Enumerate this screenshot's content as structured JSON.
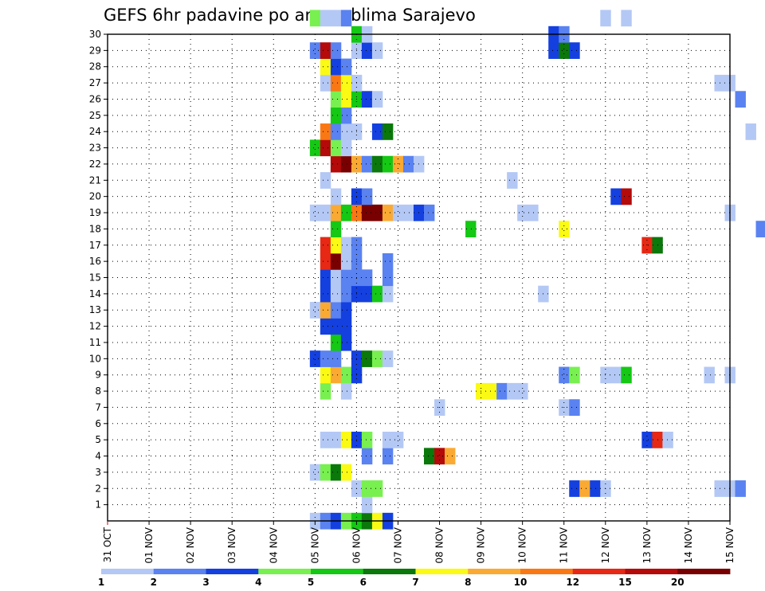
{
  "chart_data": {
    "type": "heatmap",
    "title": "GEFS 6hr padavine po ansamblima Sarajevo",
    "x_ticks": [
      "31 OCT",
      "01 NOV",
      "02 NOV",
      "03 NOV",
      "04 NOV",
      "05 NOV",
      "06 NOV",
      "07 NOV",
      "08 NOV",
      "09 NOV",
      "10 NOV",
      "11 NOV",
      "12 NOV",
      "13 NOV",
      "14 NOV",
      "15 NOV"
    ],
    "y_ticks": [
      "1",
      "2",
      "3",
      "4",
      "5",
      "6",
      "7",
      "8",
      "9",
      "10",
      "11",
      "12",
      "13",
      "14",
      "15",
      "16",
      "17",
      "18",
      "19",
      "20",
      "21",
      "22",
      "23",
      "24",
      "25",
      "26",
      "27",
      "28",
      "29",
      "30"
    ],
    "x_range_days": [
      0,
      15
    ],
    "y_range": [
      0,
      30
    ],
    "step_hours": 6,
    "grid": true,
    "colorbar": {
      "labels": [
        "1",
        "2",
        "3",
        "4",
        "5",
        "6",
        "7",
        "8",
        "10",
        "12",
        "15",
        "20"
      ],
      "colors": [
        "#b4c8f5",
        "#5a82f0",
        "#1440e0",
        "#78f050",
        "#14c814",
        "#0a780a",
        "#fafa14",
        "#faaa32",
        "#fa7814",
        "#e62814",
        "#b40a0a",
        "#780000"
      ]
    },
    "cells": [
      [
        0,
        5.0,
        1
      ],
      [
        0,
        5.25,
        2
      ],
      [
        0,
        5.5,
        3
      ],
      [
        0,
        5.75,
        4
      ],
      [
        0,
        6.0,
        5
      ],
      [
        0,
        6.25,
        6
      ],
      [
        0,
        6.5,
        7
      ],
      [
        0,
        6.75,
        3
      ],
      [
        1,
        6.25,
        1
      ],
      [
        2,
        6.0,
        1
      ],
      [
        2,
        6.25,
        4
      ],
      [
        2,
        6.5,
        4
      ],
      [
        2,
        11.25,
        3
      ],
      [
        2,
        11.5,
        8
      ],
      [
        2,
        11.75,
        3
      ],
      [
        2,
        12.0,
        1
      ],
      [
        2,
        14.75,
        1
      ],
      [
        2,
        15.0,
        1
      ],
      [
        2,
        15.25,
        2
      ],
      [
        3,
        5.0,
        1
      ],
      [
        3,
        5.25,
        4
      ],
      [
        3,
        5.5,
        6
      ],
      [
        3,
        5.75,
        7
      ],
      [
        4,
        6.25,
        2
      ],
      [
        4,
        6.75,
        2
      ],
      [
        4,
        7.75,
        6
      ],
      [
        4,
        8.0,
        11
      ],
      [
        4,
        8.25,
        8
      ],
      [
        5,
        5.25,
        1
      ],
      [
        5,
        5.5,
        1
      ],
      [
        5,
        5.75,
        7
      ],
      [
        5,
        6.0,
        3
      ],
      [
        5,
        6.25,
        4
      ],
      [
        5,
        6.75,
        1
      ],
      [
        5,
        7.0,
        1
      ],
      [
        5,
        13.0,
        3
      ],
      [
        5,
        13.25,
        10
      ],
      [
        5,
        13.5,
        1
      ],
      [
        7,
        8.0,
        1
      ],
      [
        7,
        11.0,
        1
      ],
      [
        7,
        11.25,
        2
      ],
      [
        8,
        5.25,
        4
      ],
      [
        8,
        5.75,
        1
      ],
      [
        8,
        9.0,
        7
      ],
      [
        8,
        9.25,
        7
      ],
      [
        8,
        9.5,
        2
      ],
      [
        8,
        9.75,
        1
      ],
      [
        8,
        10.0,
        1
      ],
      [
        9,
        5.25,
        7
      ],
      [
        9,
        5.5,
        8
      ],
      [
        9,
        5.75,
        4
      ],
      [
        9,
        6.0,
        3
      ],
      [
        9,
        11.0,
        2
      ],
      [
        9,
        11.25,
        4
      ],
      [
        9,
        12.0,
        1
      ],
      [
        9,
        12.25,
        1
      ],
      [
        9,
        12.5,
        5
      ],
      [
        9,
        14.5,
        1
      ],
      [
        9,
        15.0,
        1
      ],
      [
        10,
        5.0,
        3
      ],
      [
        10,
        5.25,
        2
      ],
      [
        10,
        5.5,
        2
      ],
      [
        10,
        6.0,
        3
      ],
      [
        10,
        6.25,
        6
      ],
      [
        10,
        6.5,
        4
      ],
      [
        10,
        6.75,
        1
      ],
      [
        11,
        5.5,
        5
      ],
      [
        11,
        5.75,
        3
      ],
      [
        12,
        5.25,
        3
      ],
      [
        12,
        5.5,
        3
      ],
      [
        12,
        5.75,
        3
      ],
      [
        13,
        5.0,
        1
      ],
      [
        13,
        5.25,
        8
      ],
      [
        13,
        5.5,
        2
      ],
      [
        13,
        5.75,
        3
      ],
      [
        14,
        5.25,
        3
      ],
      [
        14,
        5.5,
        1
      ],
      [
        14,
        5.75,
        2
      ],
      [
        14,
        6.0,
        3
      ],
      [
        14,
        6.25,
        3
      ],
      [
        14,
        6.5,
        5
      ],
      [
        14,
        6.75,
        1
      ],
      [
        14,
        10.5,
        1
      ],
      [
        15,
        5.25,
        3
      ],
      [
        15,
        5.5,
        1
      ],
      [
        15,
        5.75,
        2
      ],
      [
        15,
        6.0,
        2
      ],
      [
        15,
        6.25,
        2
      ],
      [
        15,
        6.75,
        2
      ],
      [
        16,
        5.25,
        10
      ],
      [
        16,
        5.5,
        12
      ],
      [
        16,
        5.75,
        1
      ],
      [
        16,
        6.0,
        2
      ],
      [
        16,
        6.75,
        2
      ],
      [
        17,
        5.25,
        10
      ],
      [
        17,
        5.5,
        7
      ],
      [
        17,
        5.75,
        1
      ],
      [
        17,
        6.0,
        2
      ],
      [
        17,
        13.0,
        10
      ],
      [
        17,
        13.25,
        6
      ],
      [
        18,
        5.5,
        5
      ],
      [
        18,
        8.75,
        5
      ],
      [
        18,
        11.0,
        7
      ],
      [
        18,
        15.75,
        2
      ],
      [
        19,
        5.0,
        1
      ],
      [
        19,
        5.25,
        1
      ],
      [
        19,
        5.5,
        8
      ],
      [
        19,
        5.75,
        5
      ],
      [
        19,
        6.0,
        9
      ],
      [
        19,
        6.25,
        12
      ],
      [
        19,
        6.5,
        12
      ],
      [
        19,
        6.75,
        8
      ],
      [
        19,
        7.0,
        1
      ],
      [
        19,
        7.25,
        1
      ],
      [
        19,
        7.5,
        3
      ],
      [
        19,
        7.75,
        2
      ],
      [
        19,
        10.0,
        1
      ],
      [
        19,
        10.25,
        1
      ],
      [
        19,
        15.0,
        1
      ],
      [
        20,
        5.5,
        1
      ],
      [
        20,
        6.0,
        3
      ],
      [
        20,
        6.25,
        2
      ],
      [
        20,
        12.25,
        3
      ],
      [
        20,
        12.5,
        11
      ],
      [
        21,
        5.25,
        1
      ],
      [
        21,
        9.75,
        1
      ],
      [
        22,
        5.5,
        11
      ],
      [
        22,
        5.75,
        12
      ],
      [
        22,
        6.0,
        8
      ],
      [
        22,
        6.25,
        2
      ],
      [
        22,
        6.5,
        6
      ],
      [
        22,
        6.75,
        5
      ],
      [
        22,
        7.0,
        8
      ],
      [
        22,
        7.25,
        2
      ],
      [
        22,
        7.5,
        1
      ],
      [
        23,
        5.0,
        5
      ],
      [
        23,
        5.25,
        11
      ],
      [
        23,
        5.5,
        4
      ],
      [
        23,
        5.75,
        1
      ],
      [
        24,
        5.25,
        9
      ],
      [
        24,
        5.5,
        2
      ],
      [
        24,
        5.75,
        1
      ],
      [
        24,
        6.0,
        1
      ],
      [
        24,
        6.5,
        3
      ],
      [
        24,
        6.75,
        6
      ],
      [
        24,
        15.5,
        1
      ],
      [
        25,
        5.5,
        5
      ],
      [
        25,
        5.75,
        2
      ],
      [
        26,
        5.5,
        4
      ],
      [
        26,
        5.75,
        7
      ],
      [
        26,
        6.0,
        5
      ],
      [
        26,
        6.25,
        3
      ],
      [
        26,
        6.5,
        1
      ],
      [
        26,
        15.25,
        2
      ],
      [
        27,
        5.25,
        1
      ],
      [
        27,
        5.5,
        9
      ],
      [
        27,
        5.75,
        7
      ],
      [
        27,
        6.0,
        1
      ],
      [
        27,
        14.75,
        1
      ],
      [
        27,
        15.0,
        1
      ],
      [
        28,
        5.25,
        7
      ],
      [
        28,
        5.5,
        3
      ],
      [
        28,
        5.75,
        2
      ],
      [
        29,
        5.0,
        2
      ],
      [
        29,
        5.25,
        11
      ],
      [
        29,
        5.5,
        2
      ],
      [
        29,
        6.0,
        1
      ],
      [
        29,
        6.25,
        3
      ],
      [
        29,
        6.5,
        1
      ],
      [
        29,
        10.75,
        3
      ],
      [
        29,
        11.0,
        6
      ],
      [
        29,
        11.25,
        3
      ],
      [
        30,
        6.0,
        5
      ],
      [
        30,
        6.25,
        1
      ],
      [
        30,
        10.75,
        3
      ],
      [
        30,
        11.0,
        2
      ],
      [
        31,
        5.0,
        4
      ],
      [
        31,
        5.25,
        1
      ],
      [
        31,
        5.5,
        1
      ],
      [
        31,
        5.75,
        2
      ],
      [
        31,
        12.0,
        1
      ],
      [
        31,
        12.5,
        1
      ]
    ]
  }
}
